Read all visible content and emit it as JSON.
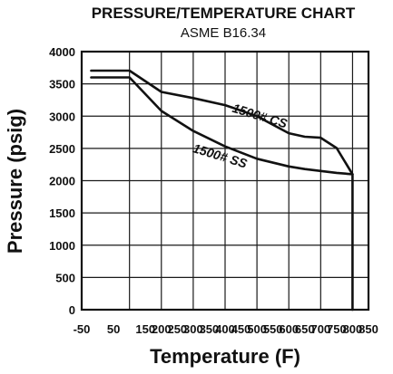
{
  "chart_data": {
    "type": "line",
    "title": "PRESSURE/TEMPERATURE CHART",
    "subtitle": "ASME B16.34",
    "xlabel": "Temperature (F)",
    "ylabel": "Pressure (psig)",
    "xlim": [
      -50,
      850
    ],
    "ylim": [
      0,
      4000
    ],
    "xticks": [
      -50,
      50,
      100,
      150,
      200,
      250,
      300,
      350,
      400,
      450,
      500,
      550,
      600,
      650,
      700,
      750,
      800,
      850
    ],
    "xtick_labels": [
      "-50",
      "50",
      "",
      "150",
      "200",
      "250",
      "300",
      "350",
      "400",
      "450",
      "500",
      "550",
      "600",
      "650",
      "700",
      "750",
      "800",
      "850"
    ],
    "yticks": [
      0,
      500,
      1000,
      1500,
      2000,
      2500,
      3000,
      3500,
      4000
    ],
    "ytick_labels": [
      "0",
      "500",
      "1000",
      "1500",
      "2000",
      "2500",
      "3000",
      "3500",
      "4000"
    ],
    "grid": true,
    "legend": "none",
    "series": [
      {
        "name": "1500# CS",
        "x": [
          -20,
          100,
          200,
          300,
          400,
          500,
          600,
          650,
          700,
          750,
          800
        ],
        "y": [
          3705,
          3705,
          3375,
          3280,
          3170,
          3000,
          2735,
          2680,
          2665,
          2505,
          2100
        ]
      },
      {
        "name": "1500# SS",
        "x": [
          -20,
          100,
          200,
          300,
          400,
          500,
          600,
          650,
          700,
          750,
          800,
          800
        ],
        "y": [
          3600,
          3600,
          3080,
          2770,
          2530,
          2340,
          2220,
          2180,
          2150,
          2120,
          2100,
          0
        ]
      }
    ],
    "annotations": [
      {
        "text": "1500# CS",
        "x": 505,
        "y": 2940,
        "rotation": 17
      },
      {
        "text": "1500# SS",
        "x": 380,
        "y": 2320,
        "rotation": 17
      }
    ],
    "colors": {
      "line": "#111111",
      "grid": "#1a1a1a",
      "frame": "#111111",
      "background": "#ffffff"
    }
  }
}
